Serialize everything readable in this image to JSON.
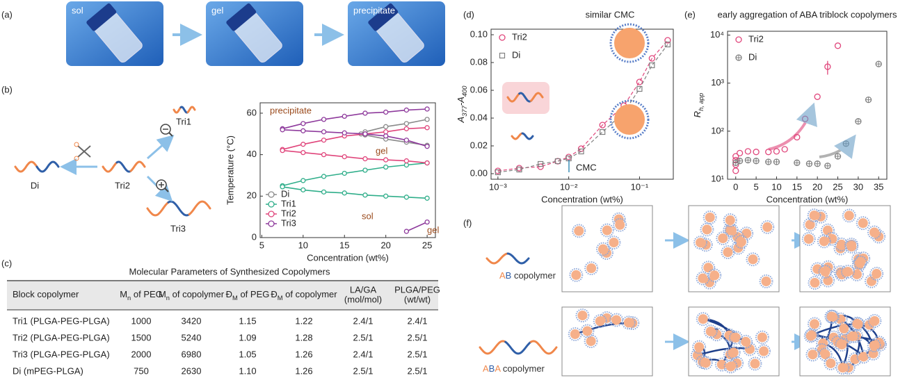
{
  "panel_labels": [
    "(a)",
    "(b)",
    "(c)",
    "(d)",
    "(e)",
    "(f)"
  ],
  "photos": [
    "sol",
    "gel",
    "precipitate"
  ],
  "schematic_b": {
    "labels": [
      "Di",
      "Tri2",
      "Tri1",
      "Tri3"
    ]
  },
  "table": {
    "title": "Molecular Parameters of Synthesized Copolymers",
    "header": [
      [
        "Block copolymer"
      ],
      [
        "M",
        "n",
        " of PEG"
      ],
      [
        "M",
        "n",
        " of copolymer"
      ],
      [
        "Đ",
        "M",
        " of PEG"
      ],
      [
        "Đ",
        "M",
        " of copolymer"
      ],
      [
        "LA/GA",
        "(mol/mol)"
      ],
      [
        "PLGA/PEG",
        "(wt/wt)"
      ]
    ],
    "rows": [
      [
        "Tri1 (PLGA-PEG-PLGA)",
        "1000",
        "3420",
        "1.15",
        "1.22",
        "2.4/1",
        "2.4/1"
      ],
      [
        "Tri2 (PLGA-PEG-PLGA)",
        "1500",
        "5240",
        "1.09",
        "1.28",
        "2.5/1",
        "2.5/1"
      ],
      [
        "Tri3 (PLGA-PEG-PLGA)",
        "2000",
        "6980",
        "1.05",
        "1.26",
        "2.4/1",
        "2.5/1"
      ],
      [
        "Di (mPEG-PLGA)",
        "750",
        "2630",
        "1.10",
        "1.26",
        "2.5/1",
        "2.5/1"
      ]
    ]
  },
  "schematic_f": {
    "rows": [
      [
        "A",
        "B",
        " copolymer"
      ],
      [
        "A",
        "B",
        "A",
        " copolymer"
      ]
    ]
  },
  "chart_data": [
    {
      "type": "line",
      "x_label": "Concentration (wt%)",
      "y_label": "Temperature (°C)",
      "xlim": [
        4.8,
        26
      ],
      "xticks": [
        5,
        10,
        15,
        20,
        25
      ],
      "ylim": [
        0,
        65
      ],
      "yticks": [
        0,
        20,
        40,
        60
      ],
      "legend": "lower left",
      "regions": [
        "precipitate",
        "gel",
        "sol",
        "gel"
      ],
      "series": [
        {
          "name": "Di",
          "color": "#8a8a8a",
          "branches": [
            {
              "x": [
                17,
                17.5,
                20,
                22.5,
                25
              ],
              "values": [
                50,
                51,
                53.5,
                55,
                57
              ]
            },
            {
              "x": [
                17.5,
                20,
                22.5,
                25
              ],
              "values": [
                49.5,
                47.5,
                46,
                44.5
              ]
            }
          ]
        },
        {
          "name": "Tri1",
          "color": "#2fae8a",
          "branches": [
            {
              "x": [
                7.5,
                10,
                12.5,
                15,
                17.5,
                20,
                22.5,
                25
              ],
              "values": [
                25,
                27.5,
                29.5,
                31,
                32.5,
                34,
                35,
                36
              ]
            },
            {
              "x": [
                7.5,
                10,
                12.5,
                15,
                17.5,
                20,
                22.5,
                25
              ],
              "values": [
                24.5,
                23,
                22,
                21.5,
                20.5,
                20,
                19.5,
                19
              ]
            }
          ]
        },
        {
          "name": "Tri2",
          "color": "#e0457b",
          "branches": [
            {
              "x": [
                7.5,
                10,
                12.5,
                15,
                17.5,
                20,
                22.5,
                25
              ],
              "values": [
                42.5,
                45,
                47,
                49,
                50,
                51,
                52.5,
                53
              ]
            },
            {
              "x": [
                7.5,
                10,
                12.5,
                15,
                17.5,
                20,
                22.5,
                25
              ],
              "values": [
                42,
                41,
                40,
                39,
                38,
                37.5,
                37,
                36
              ]
            }
          ]
        },
        {
          "name": "Tri3",
          "color": "#8e3a9c",
          "branches": [
            {
              "x": [
                7.5,
                10,
                12.5,
                15,
                17.5,
                20,
                22.5,
                25
              ],
              "values": [
                52.5,
                55,
                57,
                58.5,
                60,
                60.5,
                61.5,
                62
              ]
            },
            {
              "x": [
                7.5,
                10,
                12.5,
                15,
                17.5,
                20,
                22.5,
                25
              ],
              "values": [
                52,
                51.5,
                51,
                50.5,
                50,
                49,
                47,
                44
              ]
            },
            {
              "x": [
                22.5,
                25
              ],
              "values": [
                3,
                7.5
              ]
            }
          ]
        }
      ]
    },
    {
      "type": "scatter",
      "title": "similar CMC",
      "annotation": "CMC",
      "x_label": "Concentration (wt%)",
      "y_label": [
        "A",
        "377",
        "-A",
        "400"
      ],
      "x_scale": "log",
      "fit": true,
      "legend": "upper left",
      "xlim": [
        0.0008,
        0.3
      ],
      "xticks": [
        {
          "value": 0.001,
          "label": "10⁻³"
        },
        {
          "value": 0.01,
          "label": "10⁻²"
        },
        {
          "value": 0.1,
          "label": "10⁻¹"
        }
      ],
      "ylim": [
        -0.004,
        0.104
      ],
      "yticks": [
        {
          "value": 0,
          "label": "0.00"
        },
        0.02,
        0.04,
        0.06,
        0.08,
        {
          "value": 0.1,
          "label": "0.10"
        }
      ],
      "series": [
        {
          "name": "Tri2",
          "color": "#e0457b",
          "marker": "circle",
          "x": [
            0.001,
            0.002,
            0.004,
            0.007,
            0.01,
            0.015,
            0.03,
            0.06,
            0.1,
            0.15,
            0.25
          ],
          "values": [
            0.002,
            0.004,
            0.005,
            0.009,
            0.012,
            0.018,
            0.035,
            0.049,
            0.066,
            0.083,
            0.096
          ]
        },
        {
          "name": "Di",
          "color": "#808080",
          "marker": "square",
          "x": [
            0.001,
            0.002,
            0.004,
            0.007,
            0.01,
            0.015,
            0.03,
            0.06,
            0.1,
            0.15,
            0.25
          ],
          "values": [
            0.001,
            0.003,
            0.007,
            0.009,
            0.011,
            0.016,
            0.03,
            0.044,
            0.061,
            0.078,
            0.093
          ]
        }
      ]
    },
    {
      "type": "scatter",
      "title": "early aggregation of ABA triblock copolymers",
      "x_label": "Concentration (wt%)",
      "y_label": [
        "R",
        "h, app"
      ],
      "y_scale": "log",
      "legend": "upper left",
      "xlim": [
        -2,
        37
      ],
      "xticks": [
        0,
        5,
        10,
        15,
        20,
        25,
        30,
        35
      ],
      "ylim": [
        10,
        12000
      ],
      "yticks": [
        {
          "value": 10,
          "label": "10¹"
        },
        {
          "value": 100,
          "label": "10²"
        },
        {
          "value": 1000,
          "label": "10³"
        },
        {
          "value": 10000,
          "label": "10⁴"
        }
      ],
      "series": [
        {
          "name": "Tri2",
          "color": "#e0457b",
          "marker": "circle",
          "x": [
            0,
            0,
            0,
            0,
            1,
            3,
            5,
            8,
            10,
            12,
            15,
            17,
            20,
            22.5,
            25
          ],
          "values": [
            30,
            25,
            20,
            15,
            35,
            38,
            37,
            37,
            38,
            42,
            75,
            180,
            520,
            2200,
            6000
          ],
          "errors": [
            null,
            null,
            null,
            null,
            null,
            null,
            null,
            null,
            null,
            null,
            null,
            null,
            null,
            700,
            null
          ]
        },
        {
          "name": "Di",
          "color": "#808080",
          "marker": "circle-plus",
          "x": [
            0,
            1,
            3,
            5,
            8,
            10,
            15,
            18,
            20,
            22.5,
            25,
            27,
            30,
            32.5,
            35
          ],
          "values": [
            22,
            24,
            25,
            24,
            23,
            23,
            22,
            21,
            21,
            19,
            30,
            55,
            160,
            450,
            2500
          ]
        }
      ]
    }
  ]
}
